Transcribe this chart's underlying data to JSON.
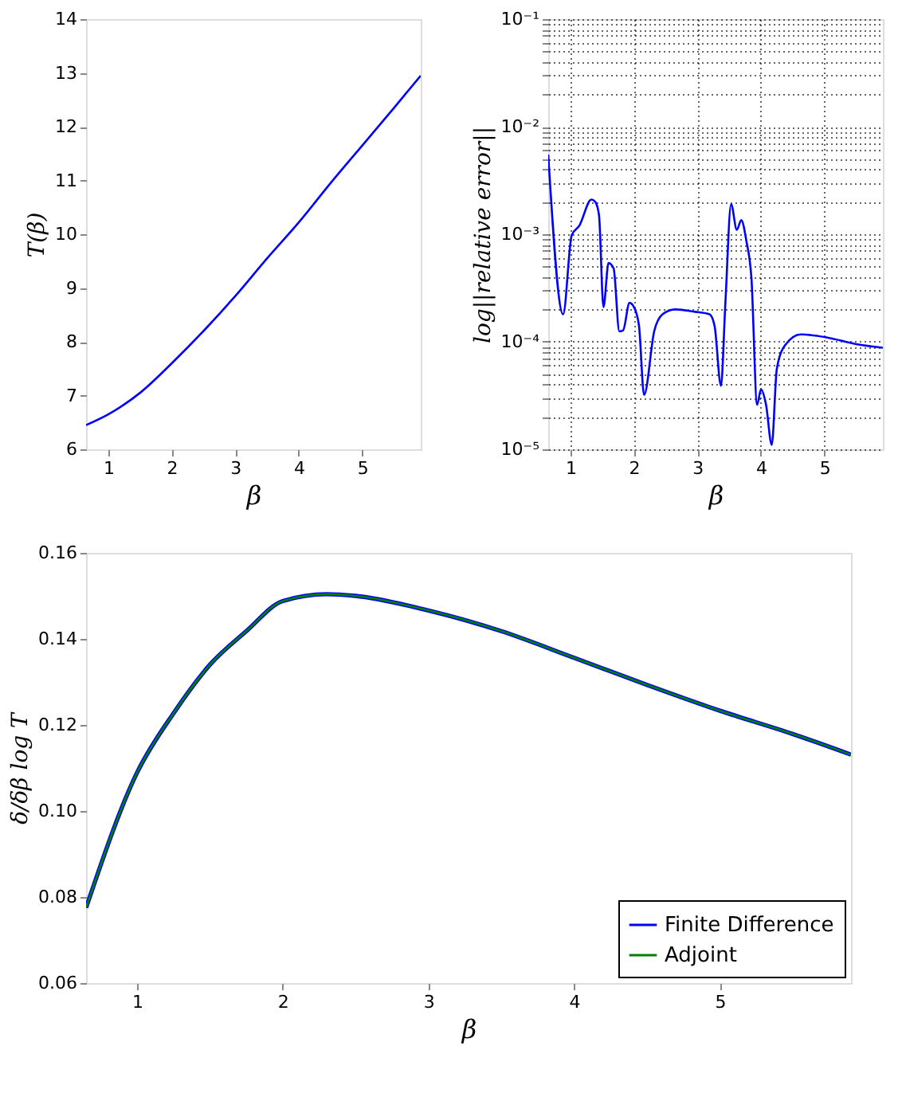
{
  "chart_data": [
    {
      "type": "line",
      "xlabel": "β",
      "ylabel": "T(β)",
      "xlim": [
        0.65,
        5.92
      ],
      "xticks": [
        1,
        2,
        3,
        4,
        5
      ],
      "ylim": [
        6,
        14
      ],
      "yticks": [
        6,
        7,
        8,
        9,
        10,
        11,
        12,
        13,
        14
      ],
      "grid": false,
      "legend": false,
      "series": [
        {
          "color": "#0000ff",
          "x": [
            0.65,
            1.0,
            1.5,
            2.0,
            2.5,
            3.0,
            3.5,
            4.0,
            4.5,
            5.0,
            5.5,
            5.92
          ],
          "values": [
            6.45,
            6.65,
            7.05,
            7.6,
            8.2,
            8.85,
            9.55,
            10.22,
            10.95,
            11.65,
            12.35,
            12.95
          ]
        }
      ]
    },
    {
      "type": "line",
      "xlabel": "β",
      "ylabel": "log||relative error||",
      "log": "y",
      "xlim": [
        0.65,
        5.92
      ],
      "xticks": [
        1,
        2,
        3,
        4,
        5
      ],
      "ylim": [
        1e-05,
        0.1
      ],
      "grid": true,
      "legend": false,
      "yticks": [
        {
          "value": 1e-05,
          "label": "10⁻⁵"
        },
        {
          "value": 2e-05,
          "label": null
        },
        {
          "value": 3e-05,
          "label": null
        },
        {
          "value": 4e-05,
          "label": null
        },
        {
          "value": 5e-05,
          "label": null
        },
        {
          "value": 6e-05,
          "label": null
        },
        {
          "value": 7e-05,
          "label": null
        },
        {
          "value": 8e-05,
          "label": null
        },
        {
          "value": 9e-05,
          "label": null
        },
        {
          "value": 0.0001,
          "label": "10⁻⁴"
        },
        {
          "value": 0.0002,
          "label": null
        },
        {
          "value": 0.0003,
          "label": null
        },
        {
          "value": 0.0004,
          "label": null
        },
        {
          "value": 0.0005,
          "label": null
        },
        {
          "value": 0.0006,
          "label": null
        },
        {
          "value": 0.0007,
          "label": null
        },
        {
          "value": 0.0008,
          "label": null
        },
        {
          "value": 0.0009,
          "label": null
        },
        {
          "value": 0.001,
          "label": "10⁻³"
        },
        {
          "value": 0.002,
          "label": null
        },
        {
          "value": 0.003,
          "label": null
        },
        {
          "value": 0.004,
          "label": null
        },
        {
          "value": 0.005,
          "label": null
        },
        {
          "value": 0.006,
          "label": null
        },
        {
          "value": 0.007,
          "label": null
        },
        {
          "value": 0.008,
          "label": null
        },
        {
          "value": 0.009,
          "label": null
        },
        {
          "value": 0.01,
          "label": "10⁻²"
        },
        {
          "value": 0.02,
          "label": null
        },
        {
          "value": 0.03,
          "label": null
        },
        {
          "value": 0.04,
          "label": null
        },
        {
          "value": 0.05,
          "label": null
        },
        {
          "value": 0.06,
          "label": null
        },
        {
          "value": 0.07,
          "label": null
        },
        {
          "value": 0.08,
          "label": null
        },
        {
          "value": 0.09,
          "label": null
        },
        {
          "value": 0.1,
          "label": "10⁻¹"
        }
      ],
      "series": [
        {
          "color": "#0000ff",
          "x": [
            0.65,
            0.885,
            1.02,
            1.14,
            1.33,
            1.39,
            1.45,
            1.52,
            1.6,
            1.68,
            1.77,
            1.83,
            1.93,
            2.0,
            2.08,
            2.16,
            2.32,
            2.45,
            2.65,
            2.96,
            3.19,
            3.27,
            3.37,
            3.44,
            3.53,
            3.62,
            3.69,
            3.77,
            3.85,
            3.94,
            4.0,
            4.08,
            4.17,
            4.25,
            4.38,
            4.63,
            5.03,
            5.5,
            5.92
          ],
          "values": [
            0.0055,
            0.00018,
            0.00098,
            0.0012,
            0.0021,
            0.002,
            0.0015,
            0.00021,
            0.00054,
            0.00048,
            0.000125,
            0.000128,
            0.00023,
            0.00021,
            0.00014,
            3.2e-05,
            0.000126,
            0.00018,
            0.0002,
            0.00019,
            0.00018,
            0.00014,
            3.9e-05,
            0.00023,
            0.0019,
            0.0011,
            0.00135,
            0.00087,
            0.00039,
            2.6e-05,
            3.6e-05,
            2.6e-05,
            1.1e-05,
            5.6e-05,
            9.3e-05,
            0.000117,
            0.00011,
            9.5e-05,
            8.8e-05
          ]
        }
      ]
    },
    {
      "type": "line",
      "xlabel": "β",
      "ylabel": "δ/δβ log T",
      "xlim": [
        0.65,
        5.9
      ],
      "xticks": [
        1,
        2,
        3,
        4,
        5
      ],
      "ylim": [
        0.06,
        0.16
      ],
      "yticks": [
        {
          "value": 0.06,
          "label": "0.06"
        },
        {
          "value": 0.08,
          "label": "0.08"
        },
        {
          "value": 0.1,
          "label": "0.10"
        },
        {
          "value": 0.12,
          "label": "0.12"
        },
        {
          "value": 0.14,
          "label": "0.14"
        },
        {
          "value": 0.16,
          "label": "0.16"
        }
      ],
      "grid": false,
      "legend": "bottom right",
      "series": [
        {
          "name": "Finite Difference",
          "color": "#0000ff",
          "x": [
            0.65,
            1.0,
            1.25,
            1.5,
            1.75,
            2.0,
            2.3,
            2.5,
            3.0,
            3.5,
            4.0,
            4.5,
            5.0,
            5.5,
            5.9
          ],
          "values": [
            0.0775,
            0.1089,
            0.1227,
            0.134,
            0.1418,
            0.1488,
            0.1504,
            0.15,
            0.1466,
            0.1418,
            0.1356,
            0.1293,
            0.1233,
            0.1179,
            0.1131
          ]
        },
        {
          "name": "Adjoint",
          "color": "#008000",
          "x": [
            0.65,
            1.0,
            1.25,
            1.5,
            1.75,
            2.0,
            2.3,
            2.5,
            3.0,
            3.5,
            4.0,
            4.5,
            5.0,
            5.5,
            5.9
          ],
          "values": [
            0.0775,
            0.1089,
            0.1227,
            0.134,
            0.1418,
            0.1488,
            0.1504,
            0.15,
            0.1466,
            0.1418,
            0.1356,
            0.1293,
            0.1233,
            0.1179,
            0.1131
          ]
        }
      ]
    }
  ]
}
